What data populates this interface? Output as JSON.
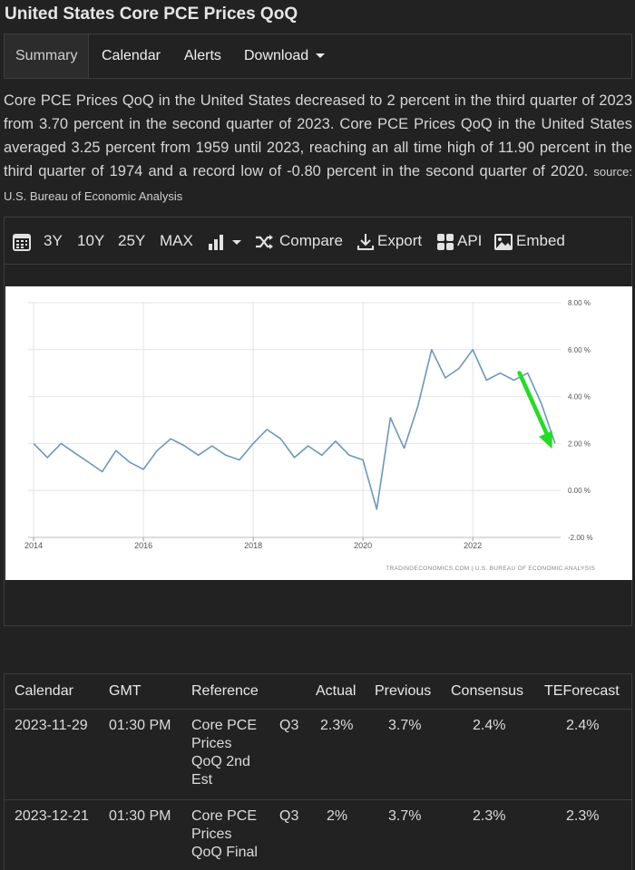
{
  "title": "United States Core PCE Prices QoQ",
  "nav": {
    "tabs": [
      "Summary",
      "Calendar",
      "Alerts",
      "Download"
    ]
  },
  "summary": {
    "text": "Core PCE Prices QoQ in the United States decreased to 2 percent in the third quarter of 2023 from 3.70 percent in the second quarter of 2023. Core PCE Prices QoQ in the United States averaged 3.25 percent from 1959 until 2023, reaching an all time high of 11.90 percent in the third quarter of 1974 and a record low of -0.80 percent in the second quarter of 2020.",
    "source": "source: U.S. Bureau of Economic Analysis"
  },
  "toolbar": {
    "range_3y": "3Y",
    "range_10y": "10Y",
    "range_25y": "25Y",
    "range_max": "MAX",
    "compare": "Compare",
    "export": "Export",
    "api": "API",
    "embed": "Embed"
  },
  "chart_data": {
    "type": "line",
    "x": [
      2014.0,
      2014.25,
      2014.5,
      2014.75,
      2015.0,
      2015.25,
      2015.5,
      2015.75,
      2016.0,
      2016.25,
      2016.5,
      2016.75,
      2017.0,
      2017.25,
      2017.5,
      2017.75,
      2018.0,
      2018.25,
      2018.5,
      2018.75,
      2019.0,
      2019.25,
      2019.5,
      2019.75,
      2020.0,
      2020.25,
      2020.5,
      2020.75,
      2021.0,
      2021.25,
      2021.5,
      2021.75,
      2022.0,
      2022.25,
      2022.5,
      2022.75,
      2023.0,
      2023.25,
      2023.5
    ],
    "y": [
      2.0,
      1.4,
      2.0,
      1.6,
      1.2,
      0.8,
      1.7,
      1.2,
      0.9,
      1.7,
      2.2,
      1.9,
      1.5,
      1.9,
      1.5,
      1.3,
      2.0,
      2.6,
      2.2,
      1.4,
      1.9,
      1.5,
      2.1,
      1.5,
      1.3,
      -0.8,
      3.1,
      1.8,
      3.6,
      6.0,
      4.8,
      5.2,
      6.0,
      4.7,
      5.0,
      4.7,
      5.0,
      3.7,
      2.0
    ],
    "xlim": [
      2013.9,
      2023.6
    ],
    "ylim": [
      -2.0,
      8.0
    ],
    "x_ticks": [
      "2014",
      "2016",
      "2018",
      "2020",
      "2022"
    ],
    "y_ticks": [
      "8.00 %",
      "6.00 %",
      "4.00 %",
      "2.00 %",
      "0.00 %",
      "-2.00 %"
    ],
    "y_tick_values": [
      8,
      6,
      4,
      2,
      0,
      -2
    ],
    "grid": true,
    "line_color": "#6a97c0",
    "arrow_color": "#22dd22",
    "credit": "TRADINGECONOMICS.COM  |  U.S. BUREAU OF ECONOMIC ANALYSIS"
  },
  "calendar": {
    "headers": [
      "Calendar",
      "GMT",
      "Reference",
      "",
      "Actual",
      "Previous",
      "Consensus",
      "TEForecast"
    ],
    "rows": [
      {
        "date": "2023-11-29",
        "time": "01:30 PM",
        "reference": [
          "Core PCE",
          "Prices",
          "QoQ 2nd",
          "Est"
        ],
        "period": "Q3",
        "actual": "2.3%",
        "previous": "3.7%",
        "consensus": "2.4%",
        "forecast": "2.4%"
      },
      {
        "date": "2023-12-21",
        "time": "01:30 PM",
        "reference": [
          "Core PCE",
          "Prices",
          "QoQ Final"
        ],
        "period": "Q3",
        "actual": "2%",
        "previous": "3.7%",
        "consensus": "2.3%",
        "forecast": "2.3%"
      }
    ]
  }
}
